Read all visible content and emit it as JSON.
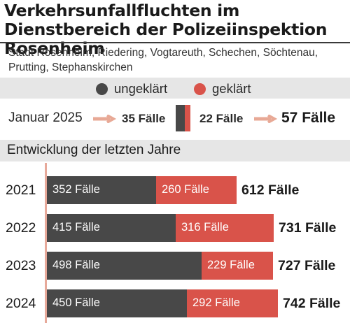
{
  "title": "Verkehrsunfallfluchten im Dienstbereich der Polizeiinspektion Rosenheim",
  "subtitle": "Stadt Rosenheim, Riedering, Vogtareuth, Schechen, Söchtenau, Prutting, Stephanskirchen",
  "legend": {
    "unsolved_label": "ungeklärt",
    "solved_label": "geklärt"
  },
  "colors": {
    "unsolved": "#484848",
    "solved": "#d9534a",
    "arrow": "#e8a996",
    "band": "#e6e6e6"
  },
  "january": {
    "label": "Januar 2025",
    "unsolved_text": "35 Fälle",
    "solved_text": "22 Fälle",
    "total_text": "57 Fälle",
    "unsolved": 35,
    "solved": 22,
    "total": 57
  },
  "section_title": "Entwicklung der letzten Jahre",
  "chart_data": {
    "type": "bar",
    "orientation": "horizontal",
    "stacked": true,
    "categories": [
      "2021",
      "2022",
      "2023",
      "2024"
    ],
    "series": [
      {
        "name": "ungeklärt",
        "values": [
          352,
          415,
          498,
          450
        ],
        "labels": [
          "352 Fälle",
          "415 Fälle",
          "498 Fälle",
          "450 Fälle"
        ]
      },
      {
        "name": "geklärt",
        "values": [
          260,
          316,
          229,
          292
        ],
        "labels": [
          "260 Fälle",
          "316 Fälle",
          "229 Fälle",
          "292 Fälle"
        ]
      }
    ],
    "totals": [
      612,
      731,
      727,
      742
    ],
    "total_labels": [
      "612 Fälle",
      "731 Fälle",
      "727 Fälle",
      "742 Fälle"
    ],
    "grid": false,
    "legend_position": "top"
  }
}
